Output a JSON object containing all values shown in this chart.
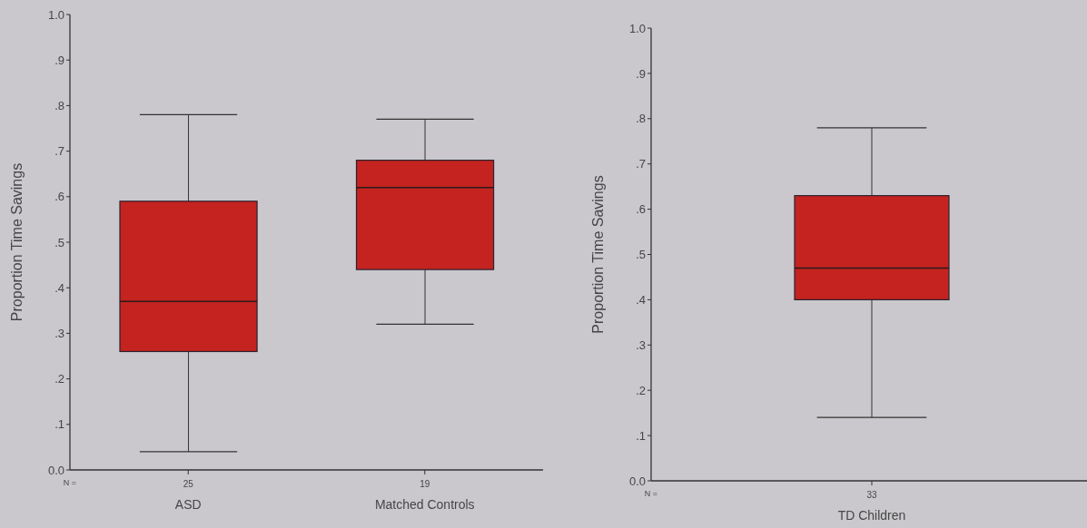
{
  "chart_data": [
    {
      "type": "box",
      "categories": [
        "ASD",
        "Matched Controls"
      ],
      "ylabel": "Proportion Time Savings",
      "color": "#c4231f",
      "boxes": [
        {
          "low": 0.04,
          "q1": 0.26,
          "median": 0.37,
          "q3": 0.59,
          "high": 0.78
        },
        {
          "low": 0.32,
          "q1": 0.44,
          "median": 0.62,
          "q3": 0.68,
          "high": 0.77
        }
      ],
      "ylim": [
        0,
        1
      ],
      "yticks": [
        {
          "value": 0,
          "label": "0.0"
        },
        {
          "value": 0.1,
          "label": ".1"
        },
        {
          "value": 0.2,
          "label": ".2"
        },
        {
          "value": 0.3,
          "label": ".3"
        },
        {
          "value": 0.4,
          "label": ".4"
        },
        {
          "value": 0.5,
          "label": ".5"
        },
        {
          "value": 0.6,
          "label": ".6"
        },
        {
          "value": 0.7,
          "label": ".7"
        },
        {
          "value": 0.8,
          "label": ".8"
        },
        {
          "value": 0.9,
          "label": ".9"
        },
        {
          "value": 1,
          "label": "1.0"
        }
      ],
      "annotations": [
        "N =",
        "25",
        "19"
      ]
    },
    {
      "type": "box",
      "categories": [
        "TD Children"
      ],
      "ylabel": "Proportion Time Savings",
      "color": "#c4231f",
      "boxes": [
        {
          "low": 0.14,
          "q1": 0.4,
          "median": 0.47,
          "q3": 0.63,
          "high": 0.78
        }
      ],
      "ylim": [
        0,
        1
      ],
      "yticks": [
        {
          "value": 0,
          "label": "0.0"
        },
        {
          "value": 0.1,
          "label": ".1"
        },
        {
          "value": 0.2,
          "label": ".2"
        },
        {
          "value": 0.3,
          "label": ".3"
        },
        {
          "value": 0.4,
          "label": ".4"
        },
        {
          "value": 0.5,
          "label": ".5"
        },
        {
          "value": 0.6,
          "label": ".6"
        },
        {
          "value": 0.7,
          "label": ".7"
        },
        {
          "value": 0.8,
          "label": ".8"
        },
        {
          "value": 0.9,
          "label": ".9"
        },
        {
          "value": 1,
          "label": "1.0"
        }
      ],
      "annotations": [
        "N =",
        "33"
      ]
    }
  ]
}
